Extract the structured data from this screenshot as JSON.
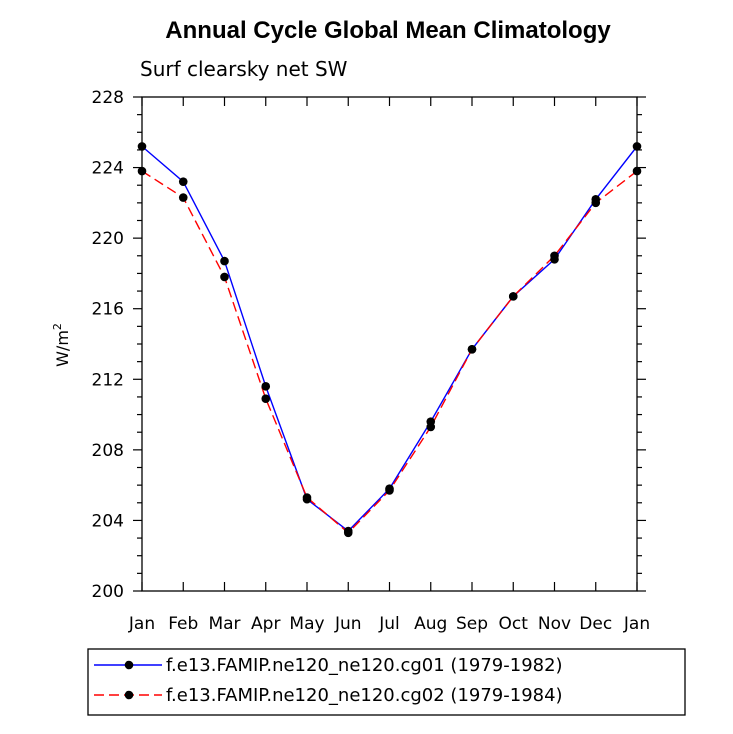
{
  "chart_data": {
    "type": "line",
    "title": "Annual Cycle Global Mean Climatology",
    "subtitle": "Surf clearsky net SW",
    "ylabel": "W/m",
    "ylabel_sup": "2",
    "xlabel": "",
    "categories": [
      "Jan",
      "Feb",
      "Mar",
      "Apr",
      "May",
      "Jun",
      "Jul",
      "Aug",
      "Sep",
      "Oct",
      "Nov",
      "Dec",
      "Jan"
    ],
    "ylim": [
      200,
      228
    ],
    "yticks": [
      200,
      204,
      208,
      212,
      216,
      220,
      224,
      228
    ],
    "ytick_labels": [
      "200",
      "204",
      "208",
      "212",
      "216",
      "220",
      "224",
      "228"
    ],
    "series": [
      {
        "name": "f.e13.FAMIP.ne120_ne120.cg01 (1979-1982)",
        "color": "#0000ff",
        "dash": "solid",
        "values": [
          225.2,
          223.2,
          218.7,
          211.6,
          205.2,
          203.4,
          205.8,
          209.6,
          213.7,
          216.7,
          218.8,
          222.2,
          225.2
        ]
      },
      {
        "name": "f.e13.FAMIP.ne120_ne120.cg02 (1979-1984)",
        "color": "#ff0000",
        "dash": "dashed",
        "values": [
          223.8,
          222.3,
          217.8,
          210.9,
          205.3,
          203.3,
          205.7,
          209.3,
          213.7,
          216.7,
          219.0,
          222.0,
          223.8
        ]
      }
    ],
    "legend_position": "bottom"
  }
}
